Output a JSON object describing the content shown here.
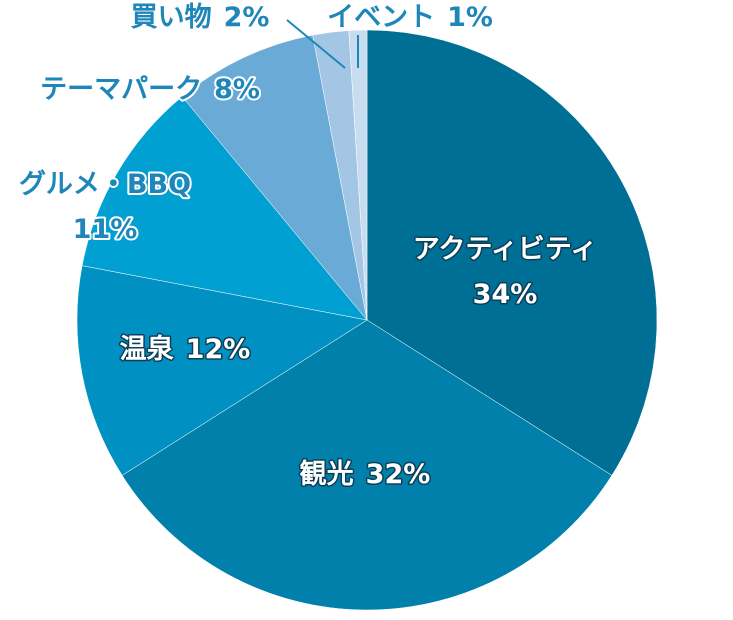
{
  "chart_data": {
    "type": "pie",
    "categories": [
      "アクティビティ",
      "観光",
      "温泉",
      "グルメ・BBQ",
      "テーマパーク",
      "買い物",
      "イベント"
    ],
    "values": [
      34,
      32,
      12,
      11,
      8,
      2,
      1
    ],
    "value_labels": [
      "34%",
      "32%",
      "12%",
      "11%",
      "8%",
      "2%",
      "1%"
    ],
    "colors": [
      "#006f95",
      "#0080aa",
      "#0090c2",
      "#00a0d2",
      "#6aaad6",
      "#a3c6e4",
      "#c8dcef"
    ]
  }
}
